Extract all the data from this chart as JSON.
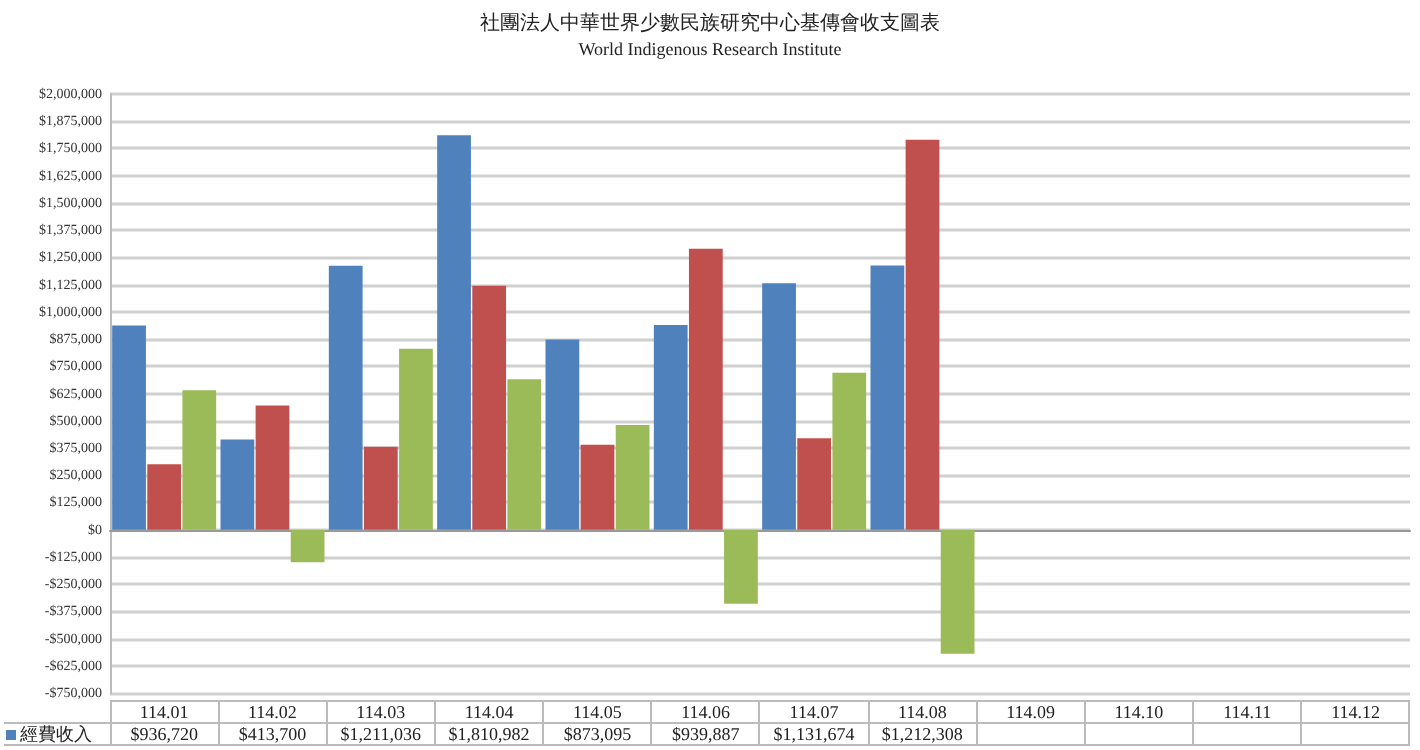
{
  "chart_data": {
    "type": "bar",
    "title": "社團法人中華世界少數民族研究中心基傳會收支圖表",
    "subtitle": "World Indigenous Research Institute",
    "categories": [
      "114.01",
      "114.02",
      "114.03",
      "114.04",
      "114.05",
      "114.06",
      "114.07",
      "114.08",
      "114.09",
      "114.10",
      "114.11",
      "114.12"
    ],
    "series": [
      {
        "name": "經費收入",
        "color": "#4f81bd",
        "values": [
          936720,
          413700,
          1211036,
          1810982,
          873095,
          939887,
          1131674,
          1212308,
          null,
          null,
          null,
          null
        ],
        "value_labels": [
          "$936,720",
          "$413,700",
          "$1,211,036",
          "$1,810,982",
          "$873,095",
          "$939,887",
          "$1,131,674",
          "$1,212,308",
          null,
          null,
          null,
          null
        ]
      },
      {
        "color": "#c0504d",
        "values": [
          300000,
          570000,
          380000,
          1120000,
          390000,
          1290000,
          420000,
          1790000,
          null,
          null,
          null,
          null
        ]
      },
      {
        "color": "#9bbb59",
        "values": [
          640000,
          -150000,
          830000,
          690000,
          480000,
          -340000,
          720000,
          -570000,
          null,
          null,
          null,
          null
        ]
      }
    ],
    "ylim": [
      -750000,
      2000000
    ],
    "yticks": [
      {
        "value": -750000,
        "label": "-$750,000"
      },
      {
        "value": -625000,
        "label": "-$625,000"
      },
      {
        "value": -500000,
        "label": "-$500,000"
      },
      {
        "value": -375000,
        "label": "-$375,000"
      },
      {
        "value": -250000,
        "label": "-$250,000"
      },
      {
        "value": -125000,
        "label": "-$125,000"
      },
      {
        "value": 0,
        "label": "$0"
      },
      {
        "value": 125000,
        "label": "$125,000"
      },
      {
        "value": 250000,
        "label": "$250,000"
      },
      {
        "value": 375000,
        "label": "$375,000"
      },
      {
        "value": 500000,
        "label": "$500,000"
      },
      {
        "value": 625000,
        "label": "$625,000"
      },
      {
        "value": 750000,
        "label": "$750,000"
      },
      {
        "value": 875000,
        "label": "$875,000"
      },
      {
        "value": 1000000,
        "label": "$1,000,000"
      },
      {
        "value": 1125000,
        "label": "$1,125,000"
      },
      {
        "value": 1250000,
        "label": "$1,250,000"
      },
      {
        "value": 1375000,
        "label": "$1,375,000"
      },
      {
        "value": 1500000,
        "label": "$1,500,000"
      },
      {
        "value": 1625000,
        "label": "$1,625,000"
      },
      {
        "value": 1750000,
        "label": "$1,750,000"
      },
      {
        "value": 1875000,
        "label": "$1,875,000"
      },
      {
        "value": 2000000,
        "label": "$2,000,000"
      }
    ],
    "grid": "y",
    "legend": "bottom left"
  }
}
